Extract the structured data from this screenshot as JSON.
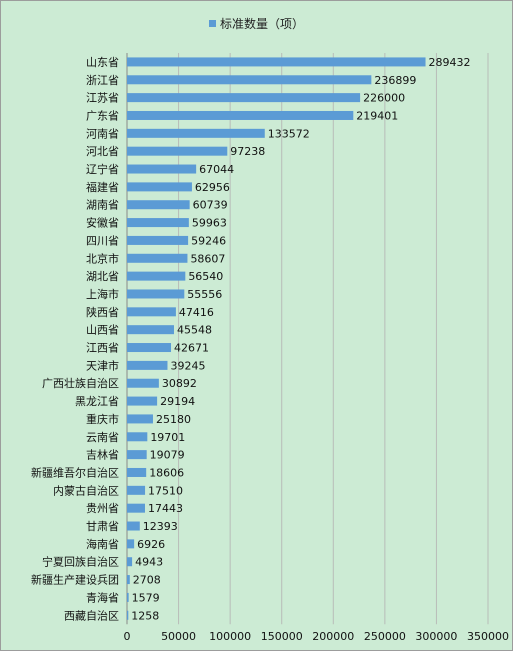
{
  "chart_data": {
    "type": "bar",
    "orientation": "horizontal",
    "legend": "标准数量（项）",
    "legend_position": "top-center",
    "grid": true,
    "xlim": [
      0,
      350000
    ],
    "xticks": [
      "0",
      "50000",
      "100000",
      "150000",
      "200000",
      "250000",
      "300000",
      "350000"
    ],
    "categories": [
      "山东省",
      "浙江省",
      "江苏省",
      "广东省",
      "河南省",
      "河北省",
      "辽宁省",
      "福建省",
      "湖南省",
      "安徽省",
      "四川省",
      "北京市",
      "湖北省",
      "上海市",
      "陕西省",
      "山西省",
      "江西省",
      "天津市",
      "广西壮族自治区",
      "黑龙江省",
      "重庆市",
      "云南省",
      "吉林省",
      "新疆维吾尔自治区",
      "内蒙古自治区",
      "贵州省",
      "甘肃省",
      "海南省",
      "宁夏回族自治区",
      "新疆生产建设兵团",
      "青海省",
      "西藏自治区"
    ],
    "values": [
      289432,
      236899,
      226000,
      219401,
      133572,
      97238,
      67044,
      62956,
      60739,
      59963,
      59246,
      58607,
      56540,
      55556,
      47416,
      45548,
      42671,
      39245,
      30892,
      29194,
      25180,
      19701,
      19079,
      18606,
      17510,
      17443,
      12393,
      6926,
      4943,
      2708,
      1579,
      1258
    ],
    "colors": {
      "bar": "#5b9bd5",
      "background": "#ccebd4",
      "grid": "#b8bcb8"
    }
  }
}
